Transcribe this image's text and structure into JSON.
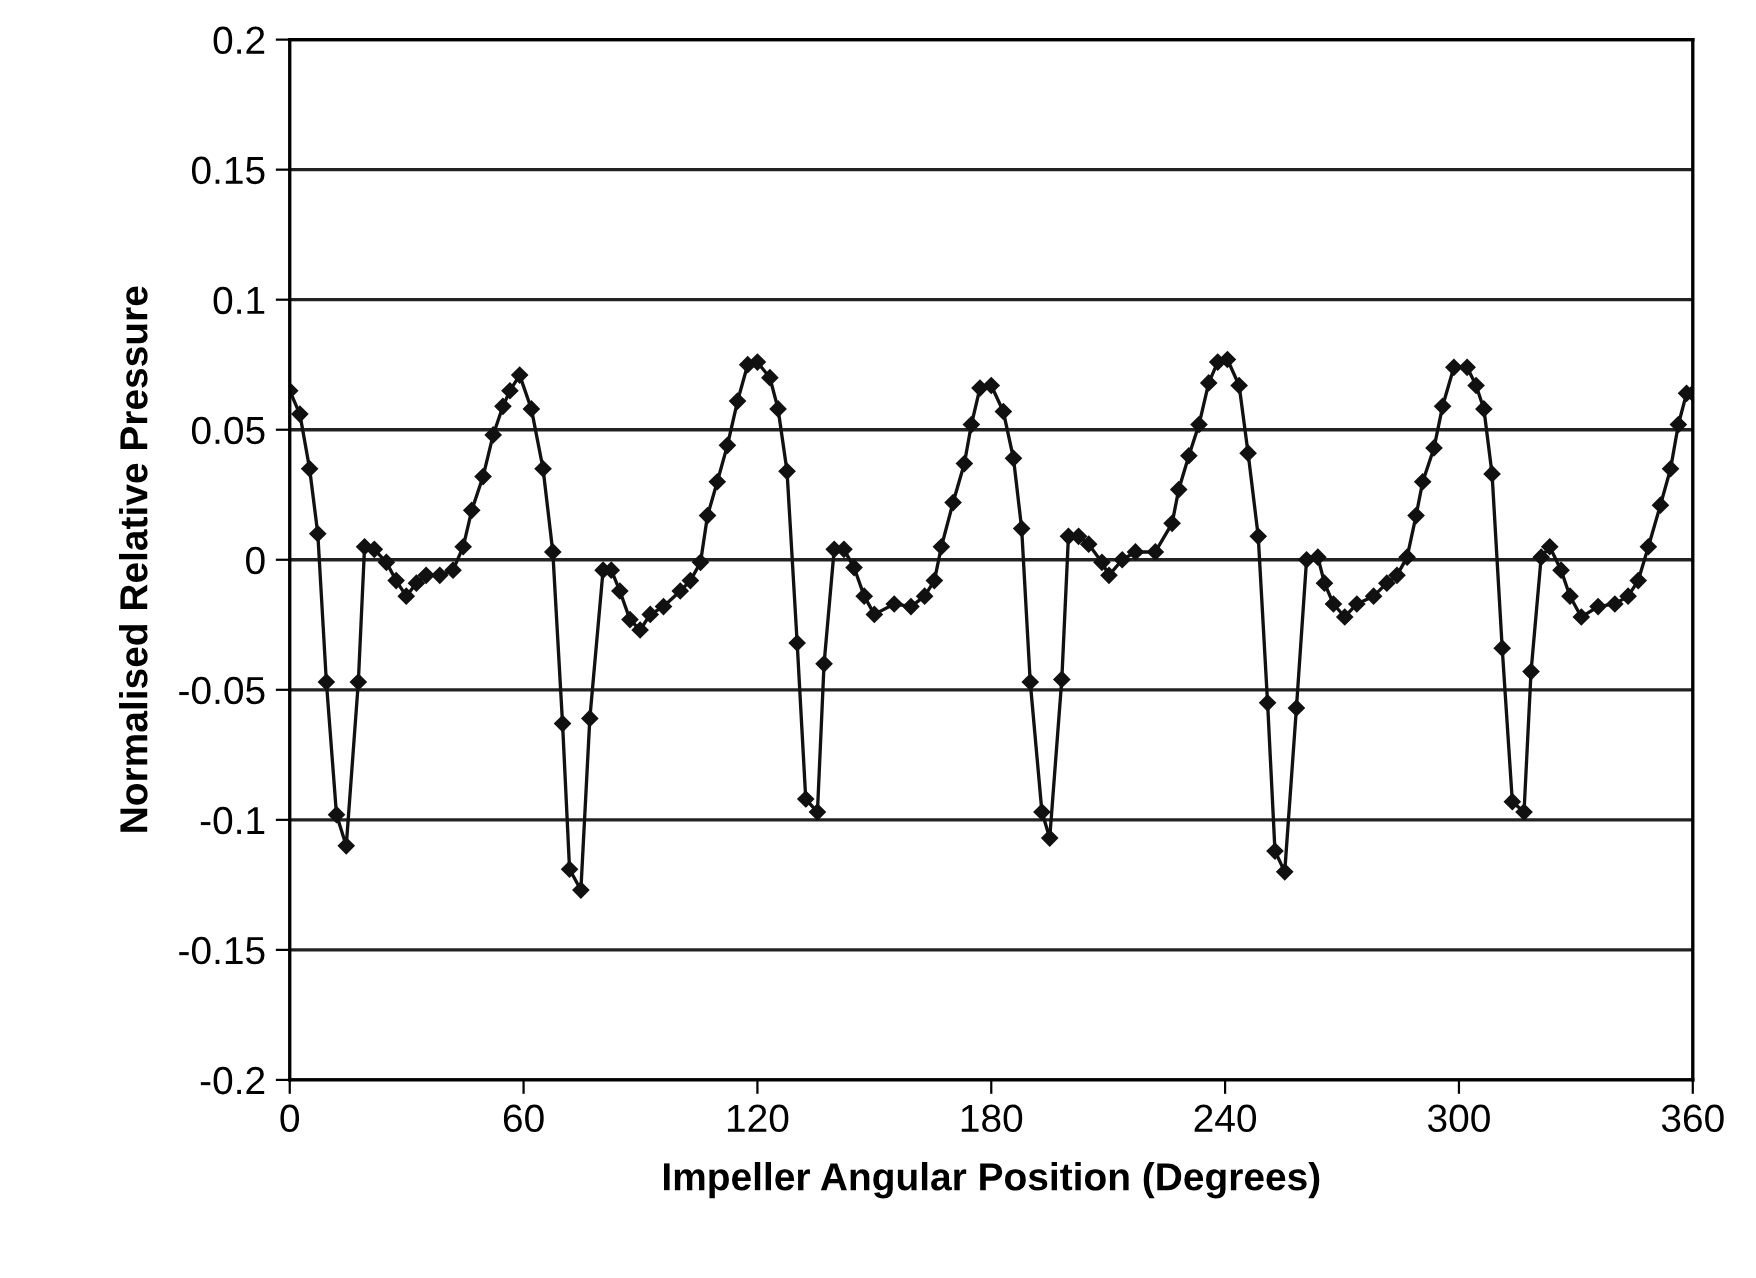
{
  "chart_data": {
    "type": "line",
    "xlabel": "Impeller Angular Position (Degrees)",
    "ylabel": "Normalised Relative Pressure",
    "xlim": [
      0,
      360
    ],
    "xticks": [
      0,
      60,
      120,
      180,
      240,
      300,
      360
    ],
    "ylim": [
      -0.2,
      0.2
    ],
    "yticks": [
      -0.2,
      -0.15,
      -0.1,
      -0.05,
      0,
      0.05,
      0.1,
      0.15,
      0.2
    ],
    "grid": "y",
    "marker": "diamond",
    "line_style": "solid",
    "series": [
      {
        "color": "#111111",
        "x": [
          0,
          2.6,
          5.1,
          7.2,
          9.4,
          12,
          14.5,
          17.6,
          19.2,
          21.7,
          24.8,
          27.3,
          29.9,
          32.5,
          35,
          38.5,
          41.9,
          44.5,
          46.7,
          49.6,
          52.2,
          54.7,
          56.5,
          59,
          62,
          65,
          67.5,
          70,
          71.8,
          74.7,
          77,
          80.4,
          82.5,
          84.7,
          87.3,
          89.9,
          92.5,
          95.9,
          100.2,
          102.8,
          105.4,
          107.2,
          109.7,
          112.3,
          114.9,
          117.5,
          120,
          123.2,
          125.3,
          127.6,
          130.2,
          132.4,
          135.4,
          137.1,
          139.7,
          142.2,
          144.8,
          147.4,
          150,
          155.1,
          159.4,
          162.9,
          165.4,
          167.2,
          170.2,
          173.1,
          174.9,
          177.1,
          180,
          183.1,
          185.7,
          187.8,
          190,
          193,
          195,
          198.1,
          199.8,
          202.4,
          205,
          208.4,
          210.2,
          213.6,
          217,
          222.1,
          226.4,
          228.1,
          230.7,
          233.3,
          235.8,
          238.1,
          240.6,
          243.6,
          245.9,
          248.5,
          250.9,
          252.8,
          255.3,
          258.3,
          260.9,
          263.8,
          265.5,
          267.8,
          270.7,
          273.8,
          278.1,
          281.5,
          284.1,
          286.7,
          289,
          290.7,
          293.6,
          295.8,
          298.7,
          302.1,
          304.4,
          306.4,
          308.5,
          311.1,
          313.7,
          316.7,
          318.5,
          321.1,
          323.3,
          326.2,
          328.5,
          331.4,
          335.7,
          340,
          343.4,
          346,
          348.6,
          351.7,
          354.3,
          356.3,
          358.4,
          360
        ],
        "values": [
          0.065,
          0.056,
          0.035,
          0.01,
          -0.047,
          -0.098,
          -0.11,
          -0.047,
          0.005,
          0.004,
          -0.001,
          -0.008,
          -0.014,
          -0.009,
          -0.006,
          -0.006,
          -0.004,
          0.005,
          0.019,
          0.032,
          0.048,
          0.059,
          0.065,
          0.071,
          0.058,
          0.035,
          0.003,
          -0.063,
          -0.119,
          -0.127,
          -0.061,
          -0.004,
          -0.004,
          -0.012,
          -0.023,
          -0.027,
          -0.021,
          -0.018,
          -0.012,
          -0.008,
          -0.001,
          0.017,
          0.03,
          0.044,
          0.061,
          0.075,
          0.076,
          0.07,
          0.058,
          0.034,
          -0.032,
          -0.092,
          -0.097,
          -0.04,
          0.004,
          0.004,
          -0.003,
          -0.014,
          -0.021,
          -0.017,
          -0.018,
          -0.014,
          -0.008,
          0.005,
          0.022,
          0.037,
          0.052,
          0.066,
          0.067,
          0.057,
          0.039,
          0.012,
          -0.047,
          -0.097,
          -0.107,
          -0.046,
          0.009,
          0.009,
          0.006,
          -0.001,
          -0.006,
          0.0,
          0.003,
          0.003,
          0.014,
          0.027,
          0.04,
          0.052,
          0.068,
          0.076,
          0.077,
          0.067,
          0.041,
          0.009,
          -0.055,
          -0.112,
          -0.12,
          -0.057,
          0.0,
          0.001,
          -0.009,
          -0.017,
          -0.022,
          -0.017,
          -0.014,
          -0.009,
          -0.006,
          0.001,
          0.017,
          0.03,
          0.043,
          0.059,
          0.074,
          0.074,
          0.067,
          0.058,
          0.033,
          -0.034,
          -0.093,
          -0.097,
          -0.043,
          0.001,
          0.005,
          -0.004,
          -0.014,
          -0.022,
          -0.018,
          -0.017,
          -0.014,
          -0.008,
          0.005,
          0.021,
          0.035,
          0.052,
          0.064,
          0.064
        ]
      }
    ]
  }
}
